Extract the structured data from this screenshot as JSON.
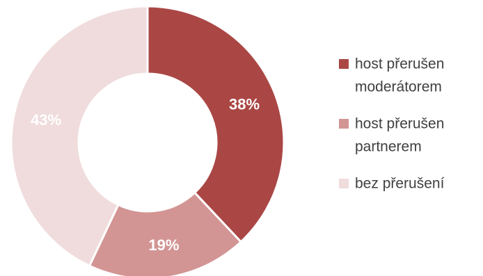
{
  "chart_data": {
    "type": "pie",
    "donut": true,
    "title": "",
    "legend_position": "right",
    "series": [
      {
        "name": "host přerušen moderátorem",
        "legend_lines": [
          "host přerušen",
          "moderátorem"
        ],
        "value": 38,
        "label": "38%",
        "color": "#aa4745"
      },
      {
        "name": "host přerušen partnerem",
        "legend_lines": [
          "host přerušen",
          "partnerem"
        ],
        "value": 19,
        "label": "19%",
        "color": "#d29594"
      },
      {
        "name": "bez přerušení",
        "legend_lines": [
          "bez přerušení"
        ],
        "value": 43,
        "label": "43%",
        "color": "#f0dcdc"
      }
    ]
  }
}
